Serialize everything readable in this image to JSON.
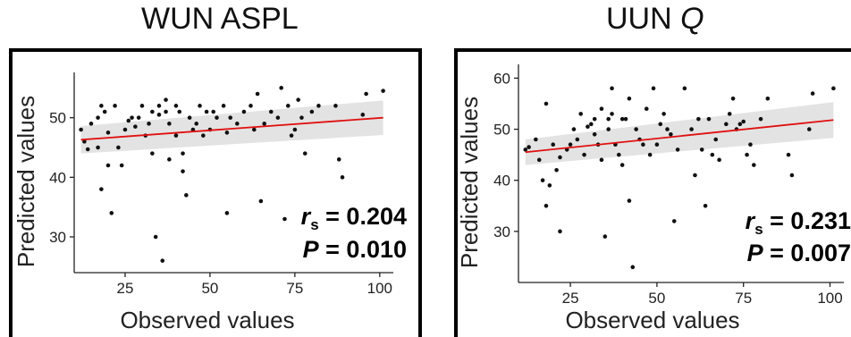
{
  "chart_data": [
    {
      "type": "scatter",
      "title_main": "WUN ASPL",
      "title_italic": "",
      "xlabel": "Observed values",
      "ylabel": "Predicted values",
      "xlim": [
        10,
        104
      ],
      "ylim": [
        24,
        57
      ],
      "xticks": [
        25,
        50,
        75,
        100
      ],
      "yticks": [
        30,
        40,
        50
      ],
      "stat_r_label": "r",
      "stat_r_sub": "s",
      "stat_r_value": " = 0.204",
      "stat_p_label": "P",
      "stat_p_value": " = 0.010",
      "trend": {
        "x": [
          12,
          101
        ],
        "y": [
          46.3,
          50.0
        ],
        "ci_low_end": [
          44.0,
          47.1
        ],
        "ci_high_end": [
          48.6,
          52.9
        ]
      },
      "points": [
        [
          12,
          48
        ],
        [
          13,
          46
        ],
        [
          14,
          44.7
        ],
        [
          15,
          49
        ],
        [
          17,
          50
        ],
        [
          17,
          45
        ],
        [
          18,
          52
        ],
        [
          18,
          38
        ],
        [
          19,
          51
        ],
        [
          20,
          47.5
        ],
        [
          20,
          42
        ],
        [
          21,
          34
        ],
        [
          22,
          52
        ],
        [
          23,
          45
        ],
        [
          24,
          42
        ],
        [
          25,
          48
        ],
        [
          26,
          49.5
        ],
        [
          27,
          50
        ],
        [
          28,
          48.5
        ],
        [
          29,
          50
        ],
        [
          30,
          52
        ],
        [
          31,
          47
        ],
        [
          32,
          49
        ],
        [
          33,
          51
        ],
        [
          33,
          44
        ],
        [
          34,
          30
        ],
        [
          35,
          52
        ],
        [
          35,
          50.5
        ],
        [
          36,
          26
        ],
        [
          37,
          53
        ],
        [
          37,
          51
        ],
        [
          38,
          49
        ],
        [
          38,
          43
        ],
        [
          40,
          52
        ],
        [
          40,
          47
        ],
        [
          41,
          51
        ],
        [
          42,
          44
        ],
        [
          42,
          41
        ],
        [
          43,
          37
        ],
        [
          44,
          50
        ],
        [
          45,
          48
        ],
        [
          46,
          49
        ],
        [
          47,
          52
        ],
        [
          48,
          47
        ],
        [
          49,
          51
        ],
        [
          50,
          48
        ],
        [
          51,
          51
        ],
        [
          52,
          50
        ],
        [
          54,
          52
        ],
        [
          55,
          47.5
        ],
        [
          55,
          34
        ],
        [
          56,
          50
        ],
        [
          58,
          49
        ],
        [
          60,
          51
        ],
        [
          62,
          52
        ],
        [
          63,
          48
        ],
        [
          64,
          54
        ],
        [
          65,
          36
        ],
        [
          66,
          49
        ],
        [
          68,
          51
        ],
        [
          70,
          50
        ],
        [
          71,
          55
        ],
        [
          72,
          33
        ],
        [
          73,
          52
        ],
        [
          74,
          47
        ],
        [
          75,
          48
        ],
        [
          76,
          53
        ],
        [
          77,
          50
        ],
        [
          78,
          44
        ],
        [
          80,
          51
        ],
        [
          82,
          52
        ],
        [
          87,
          52
        ],
        [
          88,
          43
        ],
        [
          89,
          40
        ],
        [
          95,
          50.5
        ],
        [
          96,
          54
        ],
        [
          101,
          54.5
        ]
      ]
    },
    {
      "type": "scatter",
      "title_main": "UUN ",
      "title_italic": "Q",
      "xlabel": "Observed values",
      "ylabel": "Predicted values",
      "xlim": [
        10,
        104
      ],
      "ylim": [
        20,
        62
      ],
      "xticks": [
        25,
        50,
        75,
        100
      ],
      "yticks": [
        30,
        40,
        50,
        60
      ],
      "stat_r_label": "r",
      "stat_r_sub": "s",
      "stat_r_value": " = 0.231",
      "stat_p_label": "P",
      "stat_p_value": " = 0.007",
      "trend": {
        "x": [
          12,
          101
        ],
        "y": [
          45.5,
          51.8
        ],
        "ci_low_end": [
          43.0,
          48.3
        ],
        "ci_high_end": [
          48.0,
          55.3
        ]
      },
      "points": [
        [
          12,
          46
        ],
        [
          13,
          46.5
        ],
        [
          15,
          48
        ],
        [
          16,
          44
        ],
        [
          17,
          40
        ],
        [
          18,
          35
        ],
        [
          18,
          55
        ],
        [
          19,
          39
        ],
        [
          20,
          47
        ],
        [
          21,
          42
        ],
        [
          22,
          30
        ],
        [
          22,
          44.5
        ],
        [
          24,
          46
        ],
        [
          25,
          47
        ],
        [
          26,
          50
        ],
        [
          27,
          48
        ],
        [
          28,
          53
        ],
        [
          29,
          45
        ],
        [
          30,
          50.5
        ],
        [
          31,
          51
        ],
        [
          32,
          52
        ],
        [
          32,
          49
        ],
        [
          33,
          47
        ],
        [
          34,
          54
        ],
        [
          34,
          44
        ],
        [
          35,
          29
        ],
        [
          36,
          52
        ],
        [
          36,
          50
        ],
        [
          37,
          53
        ],
        [
          37,
          58
        ],
        [
          38,
          47
        ],
        [
          39,
          45
        ],
        [
          40,
          52
        ],
        [
          40,
          43
        ],
        [
          41,
          52
        ],
        [
          42,
          36
        ],
        [
          42,
          56
        ],
        [
          43,
          23
        ],
        [
          44,
          50
        ],
        [
          45,
          48
        ],
        [
          46,
          47
        ],
        [
          47,
          54
        ],
        [
          48,
          45
        ],
        [
          49,
          58
        ],
        [
          50,
          47
        ],
        [
          51,
          51
        ],
        [
          52,
          53
        ],
        [
          53,
          50
        ],
        [
          54,
          49
        ],
        [
          55,
          32
        ],
        [
          56,
          46
        ],
        [
          58,
          58
        ],
        [
          60,
          50
        ],
        [
          61,
          41
        ],
        [
          62,
          52
        ],
        [
          63,
          46
        ],
        [
          64,
          35
        ],
        [
          65,
          52
        ],
        [
          66,
          45
        ],
        [
          67,
          48
        ],
        [
          68,
          44
        ],
        [
          70,
          51
        ],
        [
          71,
          53
        ],
        [
          72,
          56
        ],
        [
          73,
          50
        ],
        [
          74,
          51
        ],
        [
          75,
          51.5
        ],
        [
          76,
          45
        ],
        [
          77,
          47
        ],
        [
          78,
          43
        ],
        [
          80,
          52
        ],
        [
          82,
          56
        ],
        [
          88,
          45
        ],
        [
          89,
          41
        ],
        [
          94,
          50
        ],
        [
          95,
          57
        ],
        [
          101,
          58
        ]
      ]
    }
  ]
}
